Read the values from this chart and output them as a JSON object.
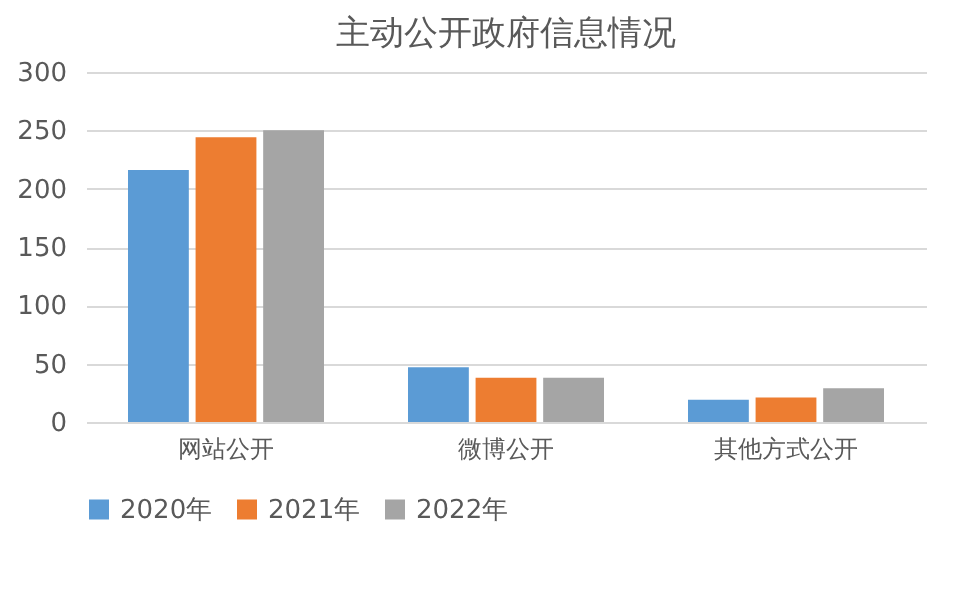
{
  "chart_data": {
    "type": "bar",
    "title": "主动公开政府信息情况",
    "categories": [
      "网站公开",
      "微博公开",
      "其他方式公开"
    ],
    "series": [
      {
        "name": "2020年",
        "color": "#5b9bd5",
        "values": [
          216,
          47,
          19
        ]
      },
      {
        "name": "2021年",
        "color": "#ed7d31",
        "values": [
          244,
          38,
          21
        ]
      },
      {
        "name": "2022年",
        "color": "#a5a5a5",
        "values": [
          250,
          38,
          29
        ]
      }
    ],
    "ylim": [
      0,
      300
    ],
    "yticks": [
      0,
      50,
      100,
      150,
      200,
      250,
      300
    ],
    "grid": "y",
    "legend": "bottom"
  }
}
